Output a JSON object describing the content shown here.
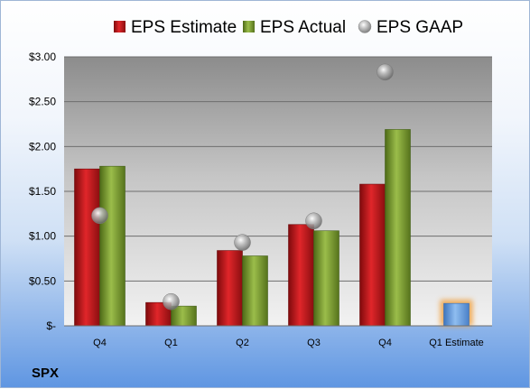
{
  "colors": {
    "estimate": "#c8181c",
    "actual": "#7a9a2e",
    "gaap": "#a8a8a8",
    "forecast": "#5f95d6",
    "forecast_glow": "#f0a040"
  },
  "chart_data": {
    "type": "bar",
    "title": "",
    "xlabel": "",
    "ylabel": "",
    "ticker": "SPX",
    "categories": [
      "Q4",
      "Q1",
      "Q2",
      "Q3",
      "Q4",
      "Q1 Estimate"
    ],
    "series": [
      {
        "name": "EPS Estimate",
        "kind": "bar",
        "values": [
          1.75,
          0.26,
          0.84,
          1.13,
          1.58,
          0.25
        ]
      },
      {
        "name": "EPS Actual",
        "kind": "bar",
        "values": [
          1.78,
          0.22,
          0.78,
          1.06,
          2.19,
          null
        ]
      },
      {
        "name": "EPS GAAP",
        "kind": "marker",
        "values": [
          1.23,
          0.27,
          0.93,
          1.17,
          2.83,
          null
        ]
      }
    ],
    "ylim": [
      0,
      3
    ],
    "yticks": [
      0,
      0.5,
      1,
      1.5,
      2,
      2.5,
      3
    ],
    "ytick_labels": [
      "$-",
      "$0.50",
      "$1.00",
      "$1.50",
      "$2.00",
      "$2.50",
      "$3.00"
    ],
    "grid": true,
    "legend_position": "top"
  }
}
